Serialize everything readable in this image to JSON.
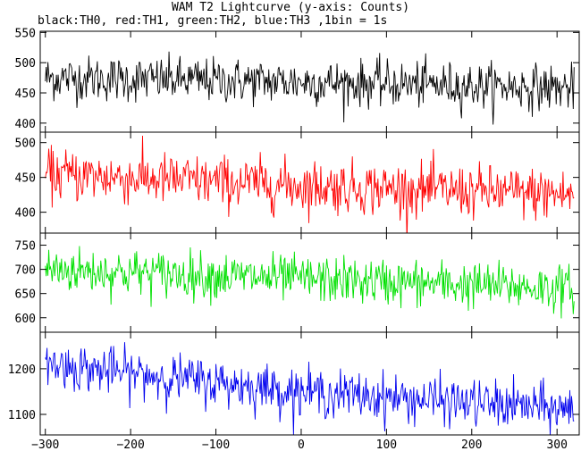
{
  "chart_data": {
    "type": "line",
    "title": "WAM T2 Lightcurve (y-axis: Counts)",
    "subtitle": "black:TH0, red:TH1, green:TH2, blue:TH3 ,1bin = 1s",
    "xlim": [
      -306,
      326
    ],
    "xticks": [
      -300,
      -200,
      -100,
      0,
      100,
      200,
      300
    ],
    "xtick_labels": [
      "−300",
      "−200",
      "−100",
      "0",
      "100",
      "200",
      "300"
    ],
    "grid": false,
    "panels": [
      {
        "name": "TH0",
        "color": "#000000",
        "ylim": [
          385,
          552
        ],
        "yticks": [
          400,
          450,
          500,
          550
        ],
        "baseline": [
          [
            -300,
            475
          ],
          [
            0,
            468
          ],
          [
            320,
            458
          ]
        ],
        "noise": 22
      },
      {
        "name": "TH1",
        "color": "#ff0000",
        "ylim": [
          370,
          515
        ],
        "yticks": [
          400,
          450,
          500
        ],
        "baseline": [
          [
            -300,
            455
          ],
          [
            0,
            438
          ],
          [
            320,
            425
          ]
        ],
        "noise": 22
      },
      {
        "name": "TH2",
        "color": "#00e000",
        "ylim": [
          570,
          775
        ],
        "yticks": [
          600,
          650,
          700,
          750
        ],
        "baseline": [
          [
            -300,
            700
          ],
          [
            0,
            680
          ],
          [
            320,
            660
          ]
        ],
        "noise": 28
      },
      {
        "name": "TH3",
        "color": "#0000ee",
        "ylim": [
          1055,
          1280
        ],
        "yticks": [
          1100,
          1200
        ],
        "baseline": [
          [
            -300,
            1210
          ],
          [
            0,
            1150
          ],
          [
            320,
            1110
          ]
        ],
        "noise": 30
      }
    ]
  }
}
